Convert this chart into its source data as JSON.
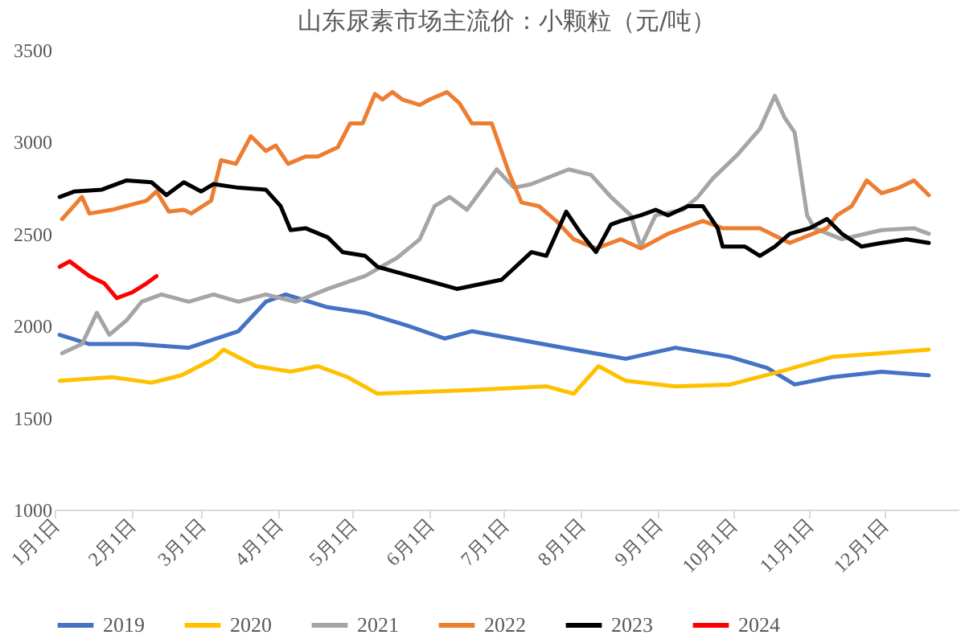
{
  "chart_data": {
    "type": "line",
    "title": "山东尿素市场主流价：小颗粒（元/吨）",
    "xlim": [
      "--01-01",
      "--12-31"
    ],
    "xticks": [
      {
        "value": "--01-01",
        "label": "1月1日"
      },
      {
        "value": "--02-01",
        "label": "2月1日"
      },
      {
        "value": "--03-01",
        "label": "3月1日"
      },
      {
        "value": "--04-01",
        "label": "4月1日"
      },
      {
        "value": "--05-01",
        "label": "5月1日"
      },
      {
        "value": "--06-01",
        "label": "6月1日"
      },
      {
        "value": "--07-01",
        "label": "7月1日"
      },
      {
        "value": "--08-01",
        "label": "8月1日"
      },
      {
        "value": "--09-01",
        "label": "9月1日"
      },
      {
        "value": "--10-01",
        "label": "10月1日"
      },
      {
        "value": "--11-01",
        "label": "11月1日"
      },
      {
        "value": "--12-01",
        "label": "12月1日"
      }
    ],
    "ylim": [
      1000,
      3500
    ],
    "yticks": [
      1000,
      1500,
      2000,
      2500,
      3000,
      3500
    ],
    "legend": "bottom",
    "line_style": "solid",
    "series": [
      {
        "name": "2019",
        "color": "#4472c4",
        "x": [
          "--01-03",
          "--01-15",
          "--02-03",
          "--02-24",
          "--03-16",
          "--03-27",
          "--04-04",
          "--04-21",
          "--05-06",
          "--05-23",
          "--06-07",
          "--06-18",
          "--07-29",
          "--08-19",
          "--09-08",
          "--09-30",
          "--10-15",
          "--10-26",
          "--11-10",
          "--11-30",
          "--12-19"
        ],
        "values": [
          1950,
          1900,
          1900,
          1880,
          1970,
          2130,
          2170,
          2100,
          2070,
          2000,
          1930,
          1970,
          1870,
          1820,
          1880,
          1830,
          1770,
          1680,
          1720,
          1750,
          1730
        ]
      },
      {
        "name": "2020",
        "color": "#ffc000",
        "x": [
          "--01-03",
          "--01-24",
          "--02-09",
          "--02-21",
          "--03-06",
          "--03-10",
          "--03-23",
          "--04-06",
          "--04-17",
          "--04-29",
          "--05-11",
          "--06-18",
          "--07-18",
          "--07-29",
          "--08-08",
          "--08-19",
          "--09-08",
          "--09-30",
          "--10-20",
          "--11-10",
          "--11-30",
          "--12-19"
        ],
        "values": [
          1700,
          1720,
          1690,
          1730,
          1820,
          1870,
          1780,
          1750,
          1780,
          1720,
          1630,
          1650,
          1670,
          1630,
          1780,
          1700,
          1670,
          1680,
          1750,
          1830,
          1850,
          1870
        ]
      },
      {
        "name": "2021",
        "color": "#a5a5a5",
        "x": [
          "--01-04",
          "--01-12",
          "--01-18",
          "--01-23",
          "--01-30",
          "--02-05",
          "--02-13",
          "--02-24",
          "--03-06",
          "--03-16",
          "--03-27",
          "--04-08",
          "--04-21",
          "--05-06",
          "--05-19",
          "--05-28",
          "--06-03",
          "--06-09",
          "--06-16",
          "--06-28",
          "--07-05",
          "--07-12",
          "--07-27",
          "--08-05",
          "--08-13",
          "--08-21",
          "--08-25",
          "--08-31",
          "--09-11",
          "--09-17",
          "--09-23",
          "--10-03",
          "--10-12",
          "--10-18",
          "--10-22",
          "--10-26",
          "--10-31",
          "--11-03",
          "--11-14",
          "--11-30",
          "--12-13",
          "--12-19"
        ],
        "values": [
          1850,
          1900,
          2070,
          1950,
          2030,
          2130,
          2170,
          2130,
          2170,
          2130,
          2170,
          2130,
          2200,
          2270,
          2370,
          2470,
          2650,
          2700,
          2630,
          2850,
          2750,
          2770,
          2850,
          2820,
          2700,
          2600,
          2430,
          2600,
          2630,
          2700,
          2800,
          2930,
          3070,
          3250,
          3130,
          3050,
          2600,
          2530,
          2470,
          2520,
          2530,
          2500
        ]
      },
      {
        "name": "2022",
        "color": "#ed7d31",
        "x": [
          "--01-04",
          "--01-12",
          "--01-15",
          "--01-24",
          "--02-07",
          "--02-11",
          "--02-16",
          "--02-22",
          "--02-25",
          "--03-05",
          "--03-09",
          "--03-15",
          "--03-21",
          "--03-27",
          "--03-31",
          "--04-05",
          "--04-12",
          "--04-17",
          "--04-25",
          "--04-30",
          "--05-05",
          "--05-10",
          "--05-13",
          "--05-17",
          "--05-21",
          "--05-28",
          "--06-01",
          "--06-08",
          "--06-13",
          "--06-18",
          "--06-26",
          "--07-03",
          "--07-08",
          "--07-15",
          "--07-22",
          "--07-29",
          "--08-07",
          "--08-17",
          "--08-25",
          "--09-05",
          "--09-11",
          "--09-19",
          "--09-27",
          "--10-12",
          "--10-24",
          "--11-08",
          "--11-12",
          "--11-18",
          "--11-24",
          "--11-30",
          "--12-07",
          "--12-13",
          "--12-19"
        ],
        "values": [
          2580,
          2700,
          2610,
          2630,
          2680,
          2730,
          2620,
          2630,
          2610,
          2680,
          2900,
          2880,
          3030,
          2950,
          2980,
          2880,
          2920,
          2920,
          2970,
          3100,
          3100,
          3260,
          3230,
          3270,
          3230,
          3200,
          3230,
          3270,
          3210,
          3100,
          3100,
          2830,
          2670,
          2650,
          2570,
          2470,
          2420,
          2470,
          2420,
          2500,
          2530,
          2570,
          2530,
          2530,
          2450,
          2530,
          2600,
          2650,
          2790,
          2720,
          2750,
          2790,
          2710
        ]
      },
      {
        "name": "2023",
        "color": "#000000",
        "x": [
          "--01-03",
          "--01-09",
          "--01-20",
          "--01-30",
          "--02-09",
          "--02-15",
          "--02-22",
          "--03-01",
          "--03-06",
          "--03-16",
          "--03-27",
          "--04-02",
          "--04-06",
          "--04-12",
          "--04-21",
          "--04-27",
          "--05-06",
          "--05-11",
          "--06-12",
          "--06-30",
          "--07-12",
          "--07-18",
          "--07-26",
          "--08-01",
          "--08-07",
          "--08-13",
          "--08-17",
          "--08-25",
          "--08-31",
          "--09-05",
          "--09-13",
          "--09-19",
          "--09-25",
          "--09-27",
          "--10-06",
          "--10-12",
          "--10-18",
          "--10-24",
          "--11-01",
          "--11-08",
          "--11-14",
          "--11-22",
          "--11-30",
          "--12-10",
          "--12-19"
        ],
        "values": [
          2700,
          2730,
          2740,
          2790,
          2780,
          2710,
          2780,
          2730,
          2770,
          2750,
          2740,
          2650,
          2520,
          2530,
          2480,
          2400,
          2380,
          2320,
          2200,
          2250,
          2400,
          2380,
          2620,
          2500,
          2400,
          2550,
          2570,
          2600,
          2630,
          2600,
          2650,
          2650,
          2530,
          2430,
          2430,
          2380,
          2430,
          2500,
          2530,
          2580,
          2500,
          2430,
          2450,
          2470,
          2450
        ]
      },
      {
        "name": "2024",
        "color": "#ff0000",
        "x": [
          "--01-03",
          "--01-07",
          "--01-15",
          "--01-21",
          "--01-26",
          "--02-01",
          "--02-07",
          "--02-11"
        ],
        "values": [
          2320,
          2350,
          2270,
          2230,
          2150,
          2180,
          2230,
          2270
        ]
      }
    ]
  }
}
